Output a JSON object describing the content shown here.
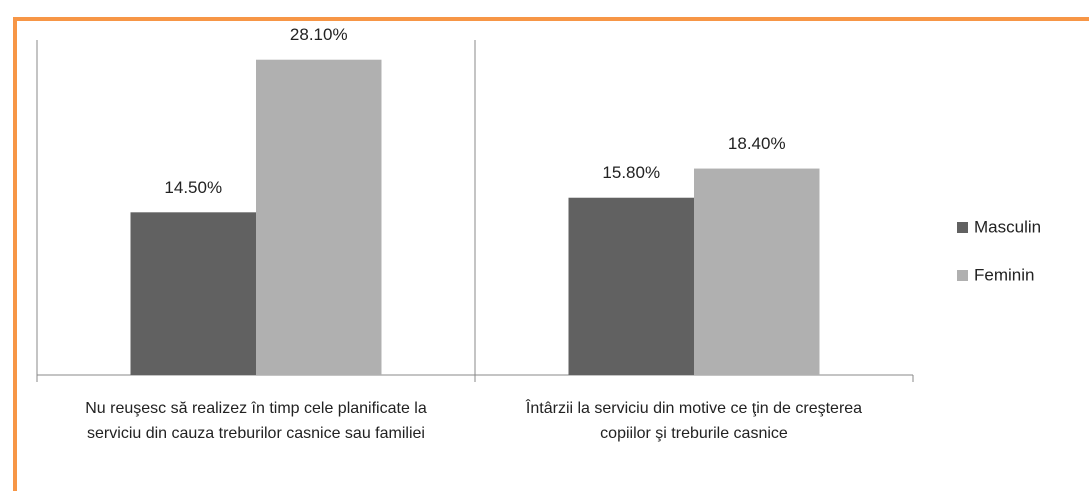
{
  "chart_data": {
    "type": "bar",
    "categories": [
      "Nu reuşesc să realizez în timp cele planificate la serviciu din cauza treburilor casnice sau familiei",
      "Întârzii la serviciu din motive ce ţin de creşterea copiilor şi treburile casnice"
    ],
    "series": [
      {
        "name": "Masculin",
        "color": "#616161",
        "values": [
          14.5,
          15.8
        ],
        "value_labels": [
          "14.50%",
          "15.80%"
        ]
      },
      {
        "name": "Feminin",
        "color": "#b0b0b0",
        "values": [
          28.1,
          18.4
        ],
        "value_labels": [
          "28.10%",
          "18.40%"
        ]
      }
    ],
    "legend": "right"
  }
}
